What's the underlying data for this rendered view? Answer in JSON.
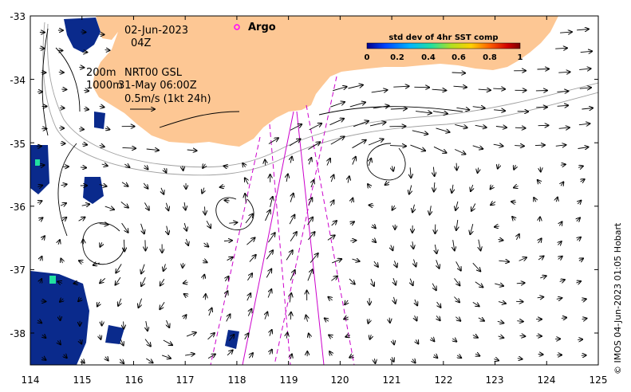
{
  "map": {
    "date_label": "02-Jun-2023",
    "hour_label": "04Z",
    "argo_label": "Argo",
    "depth_line_200": "200m",
    "depth_line_1000": "1000m",
    "product_label": "NRT00 GSL",
    "product_time": "31-May 06:00Z",
    "scale_label": "0.5m/s (1kt 24h)",
    "credit": "© IMOS 04-Jun-2023 01:05 Hobart",
    "colorbar": {
      "title": "std dev of 4hr SST comp",
      "ticks": [
        "0",
        "0.2",
        "0.4",
        "0.6",
        "0.8",
        "1"
      ],
      "colors": [
        "#00008b",
        "#0044ff",
        "#00b4ff",
        "#22e0a0",
        "#b0e020",
        "#ffd000",
        "#ff6000",
        "#d00000",
        "#7a0000"
      ]
    },
    "lon_ticks": [
      "114",
      "115",
      "116",
      "117",
      "118",
      "119",
      "120",
      "121",
      "122",
      "123",
      "124",
      "125"
    ],
    "lat_ticks": [
      "-33",
      "-34",
      "-35",
      "-36",
      "-37",
      "-38"
    ],
    "colors": {
      "land": "#fdc794",
      "ocean": "#ffffff",
      "track": "#cc00cc",
      "argo": "#ff00ff",
      "sst_patch": "#0a2a8c"
    }
  }
}
